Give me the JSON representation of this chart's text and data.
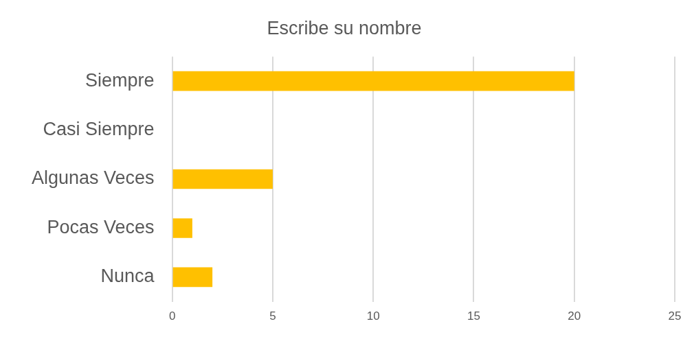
{
  "chart_data": {
    "type": "bar",
    "orientation": "horizontal",
    "title": "Escribe su nombre",
    "categories": [
      "Siempre",
      "Casi Siempre",
      "Algunas Veces",
      "Pocas Veces",
      "Nunca"
    ],
    "values": [
      20,
      0,
      5,
      1,
      2
    ],
    "color": "#ffc000",
    "xlim": [
      0,
      25
    ],
    "xticks": [
      0,
      5,
      10,
      15,
      20,
      25
    ],
    "grid": "x",
    "legend": false
  }
}
